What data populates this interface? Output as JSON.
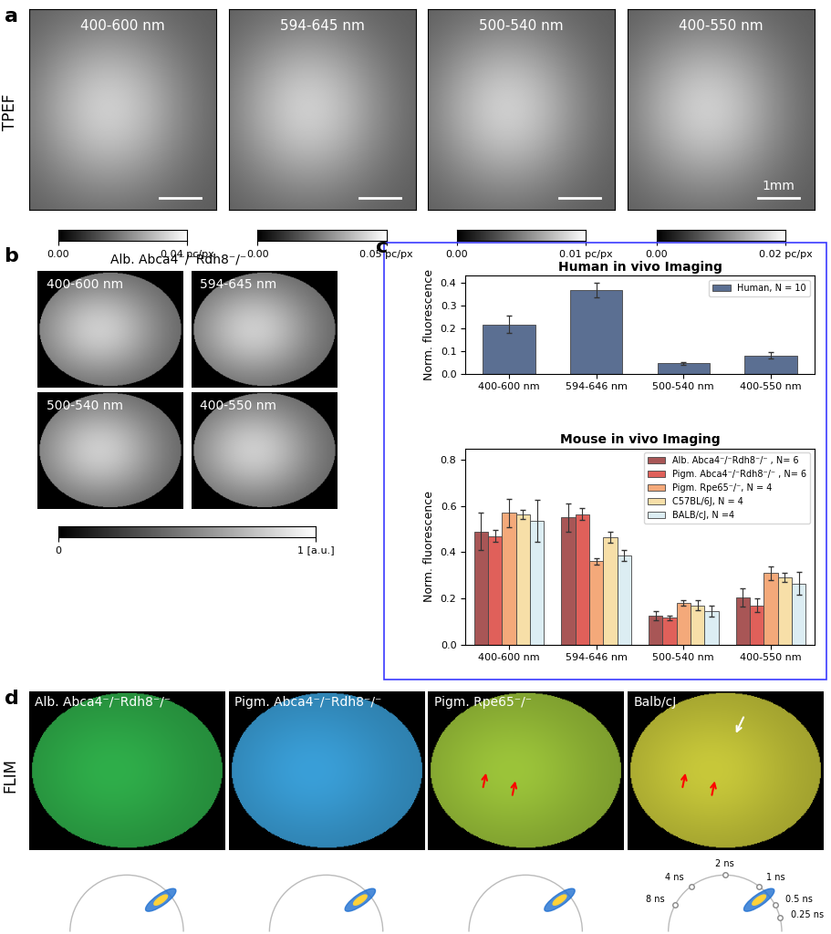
{
  "chart_data": [
    {
      "type": "bar",
      "title": "Human in vivo Imaging",
      "ylabel": "Norm. fluorescence",
      "categories": [
        "400-600 nm",
        "594-646 nm",
        "500-540 nm",
        "400-550 nm"
      ],
      "series": [
        {
          "name": "Human, N = 10",
          "color": "#5b6f92",
          "values": [
            0.215,
            0.368,
            0.045,
            0.08
          ],
          "errors": [
            0.038,
            0.032,
            0.006,
            0.014
          ]
        }
      ],
      "ylim": [
        0,
        0.43
      ],
      "yticks": [
        0.0,
        0.1,
        0.2,
        0.3,
        0.4
      ],
      "legend": "upper right"
    },
    {
      "type": "bar",
      "title": "Mouse in vivo Imaging",
      "ylabel": "Norm. fluorescence",
      "categories": [
        "400-600 nm",
        "594-646 nm",
        "500-540 nm",
        "400-550 nm"
      ],
      "series": [
        {
          "name": "Alb. Abca4⁻/⁻Rdh8⁻/⁻ , N= 6",
          "color": "#a85656",
          "values": [
            0.49,
            0.55,
            0.125,
            0.205
          ],
          "errors": [
            0.08,
            0.06,
            0.02,
            0.04
          ]
        },
        {
          "name": "Pigm. Abca4⁻/⁻Rdh8⁻/⁻ , N= 6",
          "color": "#e0605a",
          "values": [
            0.47,
            0.565,
            0.115,
            0.17
          ],
          "errors": [
            0.025,
            0.025,
            0.01,
            0.03
          ]
        },
        {
          "name": "Pigm. Rpe65⁻/⁻, N = 4",
          "color": "#f4a97a",
          "values": [
            0.57,
            0.36,
            0.18,
            0.31
          ],
          "errors": [
            0.06,
            0.015,
            0.012,
            0.03
          ]
        },
        {
          "name": "C57BL/6J, N = 4",
          "color": "#f7dfa8",
          "values": [
            0.565,
            0.465,
            0.17,
            0.29
          ],
          "errors": [
            0.02,
            0.025,
            0.02,
            0.02
          ]
        },
        {
          "name": "BALB/cJ, N =4",
          "color": "#dcedf3",
          "values": [
            0.535,
            0.385,
            0.145,
            0.265
          ],
          "errors": [
            0.09,
            0.025,
            0.025,
            0.05
          ]
        }
      ],
      "ylim": [
        0,
        0.85
      ],
      "yticks": [
        0.0,
        0.2,
        0.4,
        0.6,
        0.8
      ],
      "legend": "upper right"
    }
  ],
  "panels": {
    "a": {
      "label": "a",
      "row_label": "TPEF",
      "images": [
        {
          "title": "400-600 nm",
          "colorbar": {
            "range": [
              0,
              0.04
            ],
            "ticks": [
              {
                "value": 0,
                "label": "0.00"
              },
              {
                "value": 0.04,
                "label": "0.04 pc/px"
              }
            ]
          }
        },
        {
          "title": "594-645 nm",
          "colorbar": {
            "range": [
              0,
              0.05
            ],
            "ticks": [
              {
                "value": 0,
                "label": "0.00"
              },
              {
                "value": 0.05,
                "label": "0.05 pc/px"
              }
            ]
          }
        },
        {
          "title": "500-540 nm",
          "colorbar": {
            "range": [
              0,
              0.01
            ],
            "ticks": [
              {
                "value": 0,
                "label": "0.00"
              },
              {
                "value": 0.01,
                "label": "0.01 pc/px"
              }
            ]
          }
        },
        {
          "title": "400-550 nm",
          "scale_bar": "1mm",
          "colorbar": {
            "range": [
              0,
              0.02
            ],
            "ticks": [
              {
                "value": 0,
                "label": "0.00"
              },
              {
                "value": 0.02,
                "label": "0.02 pc/px"
              }
            ]
          }
        }
      ]
    },
    "b": {
      "label": "b",
      "title": "Alb. Abca4⁻/⁻Rdh8⁻/⁻",
      "images": [
        "400-600 nm",
        "594-645 nm",
        "500-540 nm",
        "400-550 nm"
      ],
      "colorbar": {
        "range": [
          0,
          1
        ],
        "ticks": [
          0,
          {
            "value": 1,
            "label": "1 [a.u.]"
          }
        ]
      }
    },
    "c": {
      "label": "c"
    },
    "d": {
      "label": "d",
      "row_label": "FLIM",
      "images": [
        {
          "title": "Alb. Abca4⁻/⁻Rdh8⁻/⁻",
          "color": "#2fae4a"
        },
        {
          "title": "Pigm. Abca4⁻/⁻Rdh8⁻/⁻",
          "color": "#3a9fd8"
        },
        {
          "title": "Pigm. Rpe65⁻/⁻",
          "color": "#9cc43a"
        },
        {
          "title": "Balb/cJ",
          "color": "#c8c83a"
        }
      ],
      "phasor_ticks": [
        {
          "value": 8,
          "label": "8 ns"
        },
        {
          "value": 4,
          "label": "4 ns"
        },
        {
          "value": 2,
          "label": "2 ns"
        },
        {
          "value": 1,
          "label": "1 ns"
        },
        {
          "value": 0.5,
          "label": "0.5 ns"
        },
        {
          "value": 0.25,
          "label": "0.25 ns"
        }
      ]
    }
  }
}
